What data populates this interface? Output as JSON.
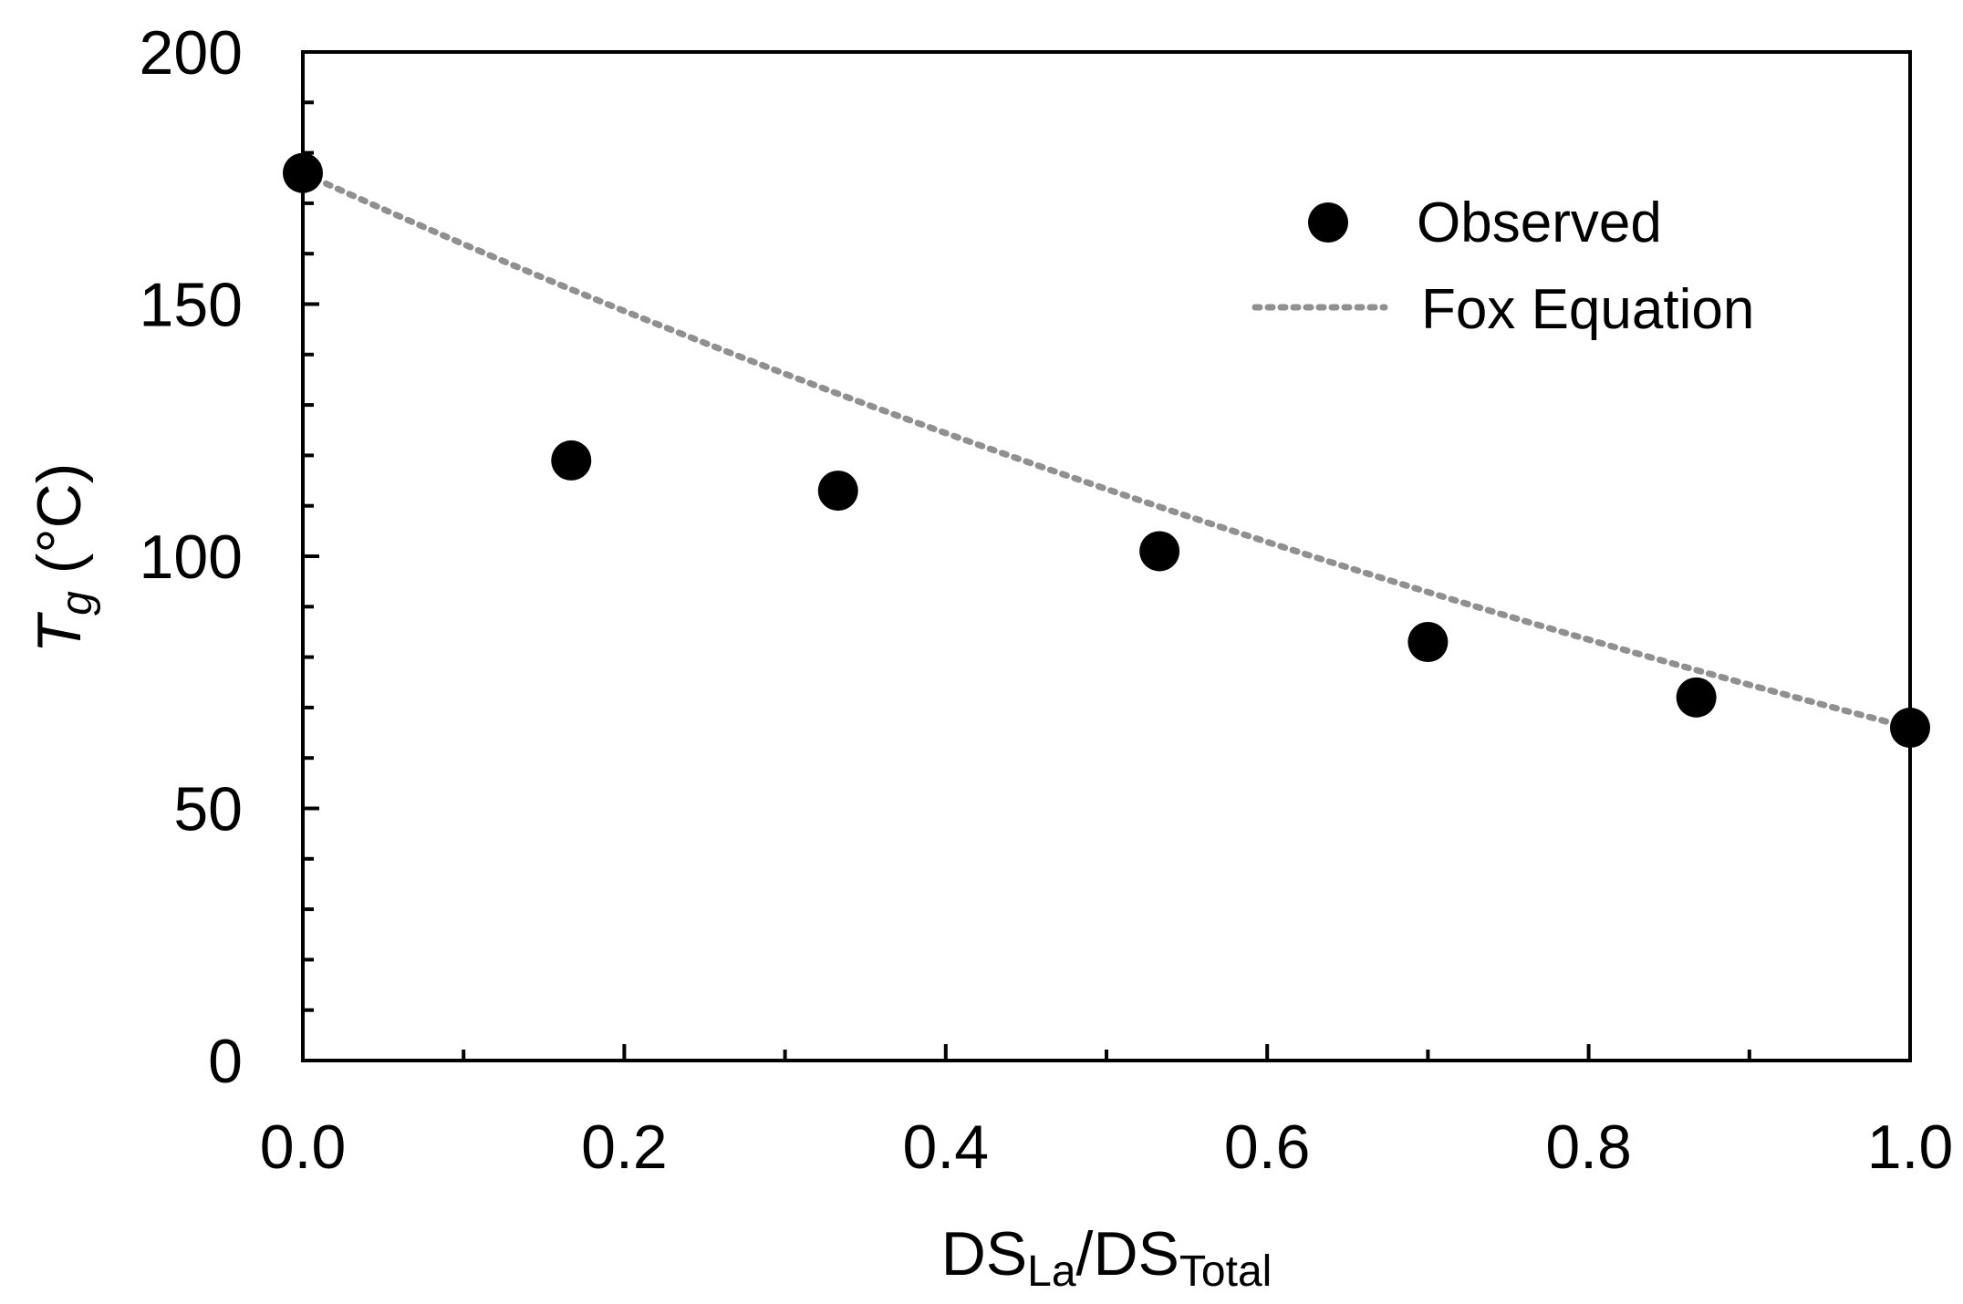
{
  "chart_data": {
    "type": "scatter",
    "title": "",
    "xlabel": {
      "main1": "DS",
      "sub1": "La",
      "slash": "/",
      "main2": "DS",
      "sub2": "Total"
    },
    "ylabel": {
      "symbol": "T",
      "sub": "g",
      "unit": " (°C)"
    },
    "xlim": [
      0.0,
      1.0
    ],
    "ylim": [
      0,
      200
    ],
    "x_ticks": [
      "0.0",
      "0.2",
      "0.4",
      "0.6",
      "0.8",
      "1.0"
    ],
    "x_tick_values": [
      0.0,
      0.2,
      0.4,
      0.6,
      0.8,
      1.0
    ],
    "x_minor_tick_values": [
      0.1,
      0.3,
      0.5,
      0.7,
      0.9
    ],
    "y_ticks": [
      "0",
      "50",
      "100",
      "150",
      "200"
    ],
    "y_tick_values": [
      0,
      50,
      100,
      150,
      200
    ],
    "y_minor_tick_values": [
      10,
      20,
      30,
      40,
      60,
      70,
      80,
      90,
      110,
      120,
      130,
      140,
      160,
      170,
      180,
      190
    ],
    "grid": false,
    "legend_position": "top-right",
    "series": [
      {
        "name": "Observed",
        "kind": "scatter",
        "color": "#000000",
        "x": [
          0.0,
          0.167,
          0.333,
          0.533,
          0.7,
          0.867,
          1.0
        ],
        "y": [
          176,
          119,
          113,
          101,
          83,
          72,
          66
        ]
      },
      {
        "name": "Fox Equation",
        "kind": "line",
        "style": "dotted",
        "color": "#909090",
        "Tg_start": 176,
        "Tg_end": 66
      }
    ]
  }
}
